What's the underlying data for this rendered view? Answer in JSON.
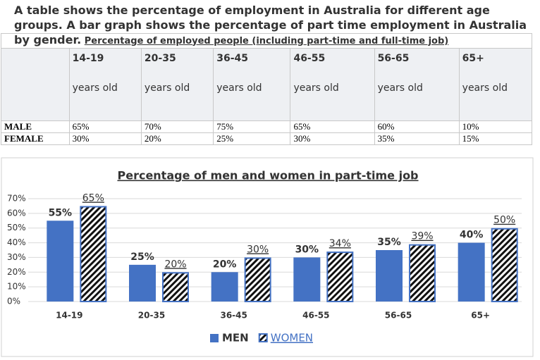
{
  "title": "A table shows the percentage of employment in Australia for different age groups. A bar graph shows the percentage of part time employment in Australia by gender.",
  "table": {
    "caption": "Percentage of employed people (including part-time and full-time job)",
    "header": [
      {
        "age": "14-19",
        "unit": "years old"
      },
      {
        "age": "20-35",
        "unit": "years old"
      },
      {
        "age": "36-45",
        "unit": "years old"
      },
      {
        "age": "46-55",
        "unit": "years old"
      },
      {
        "age": "56-65",
        "unit": "years old"
      },
      {
        "age": "65+",
        "unit": "years old"
      }
    ],
    "rows": [
      [
        "MALE",
        "65%",
        "70%",
        "75%",
        "65%",
        "60%",
        "10%"
      ],
      [
        "FEMALE",
        "30%",
        "20%",
        "25%",
        "30%",
        "35%",
        "15%"
      ]
    ]
  },
  "chart_data": {
    "type": "bar",
    "title": "Percentage of men and women in part-time job",
    "categories": [
      "14-19",
      "20-35",
      "36-45",
      "46-55",
      "56-65",
      "65+"
    ],
    "series": [
      {
        "name": "MEN",
        "color": "#4472c4",
        "hatch": false,
        "values": [
          55,
          25,
          20,
          30,
          35,
          40
        ],
        "value_labels": [
          "55%",
          "25%",
          "20%",
          "30%",
          "35%",
          "40%"
        ]
      },
      {
        "name": "WOMEN",
        "color": "#4472c4",
        "hatch": true,
        "values": [
          65,
          20,
          30,
          34,
          39,
          50
        ],
        "value_labels": [
          "65%",
          "20%",
          "30%",
          "34%",
          "39%",
          "50%"
        ]
      }
    ],
    "ylim": [
      0,
      70
    ],
    "yticks": [
      {
        "value": 0,
        "label": "0%"
      },
      {
        "value": 10,
        "label": "10%"
      },
      {
        "value": 20,
        "label": "20%"
      },
      {
        "value": 30,
        "label": "30%"
      },
      {
        "value": 40,
        "label": "40%"
      },
      {
        "value": 50,
        "label": "50%"
      },
      {
        "value": 60,
        "label": "60%"
      },
      {
        "value": 70,
        "label": "70%"
      }
    ],
    "grid": true,
    "legend": "bottom"
  }
}
